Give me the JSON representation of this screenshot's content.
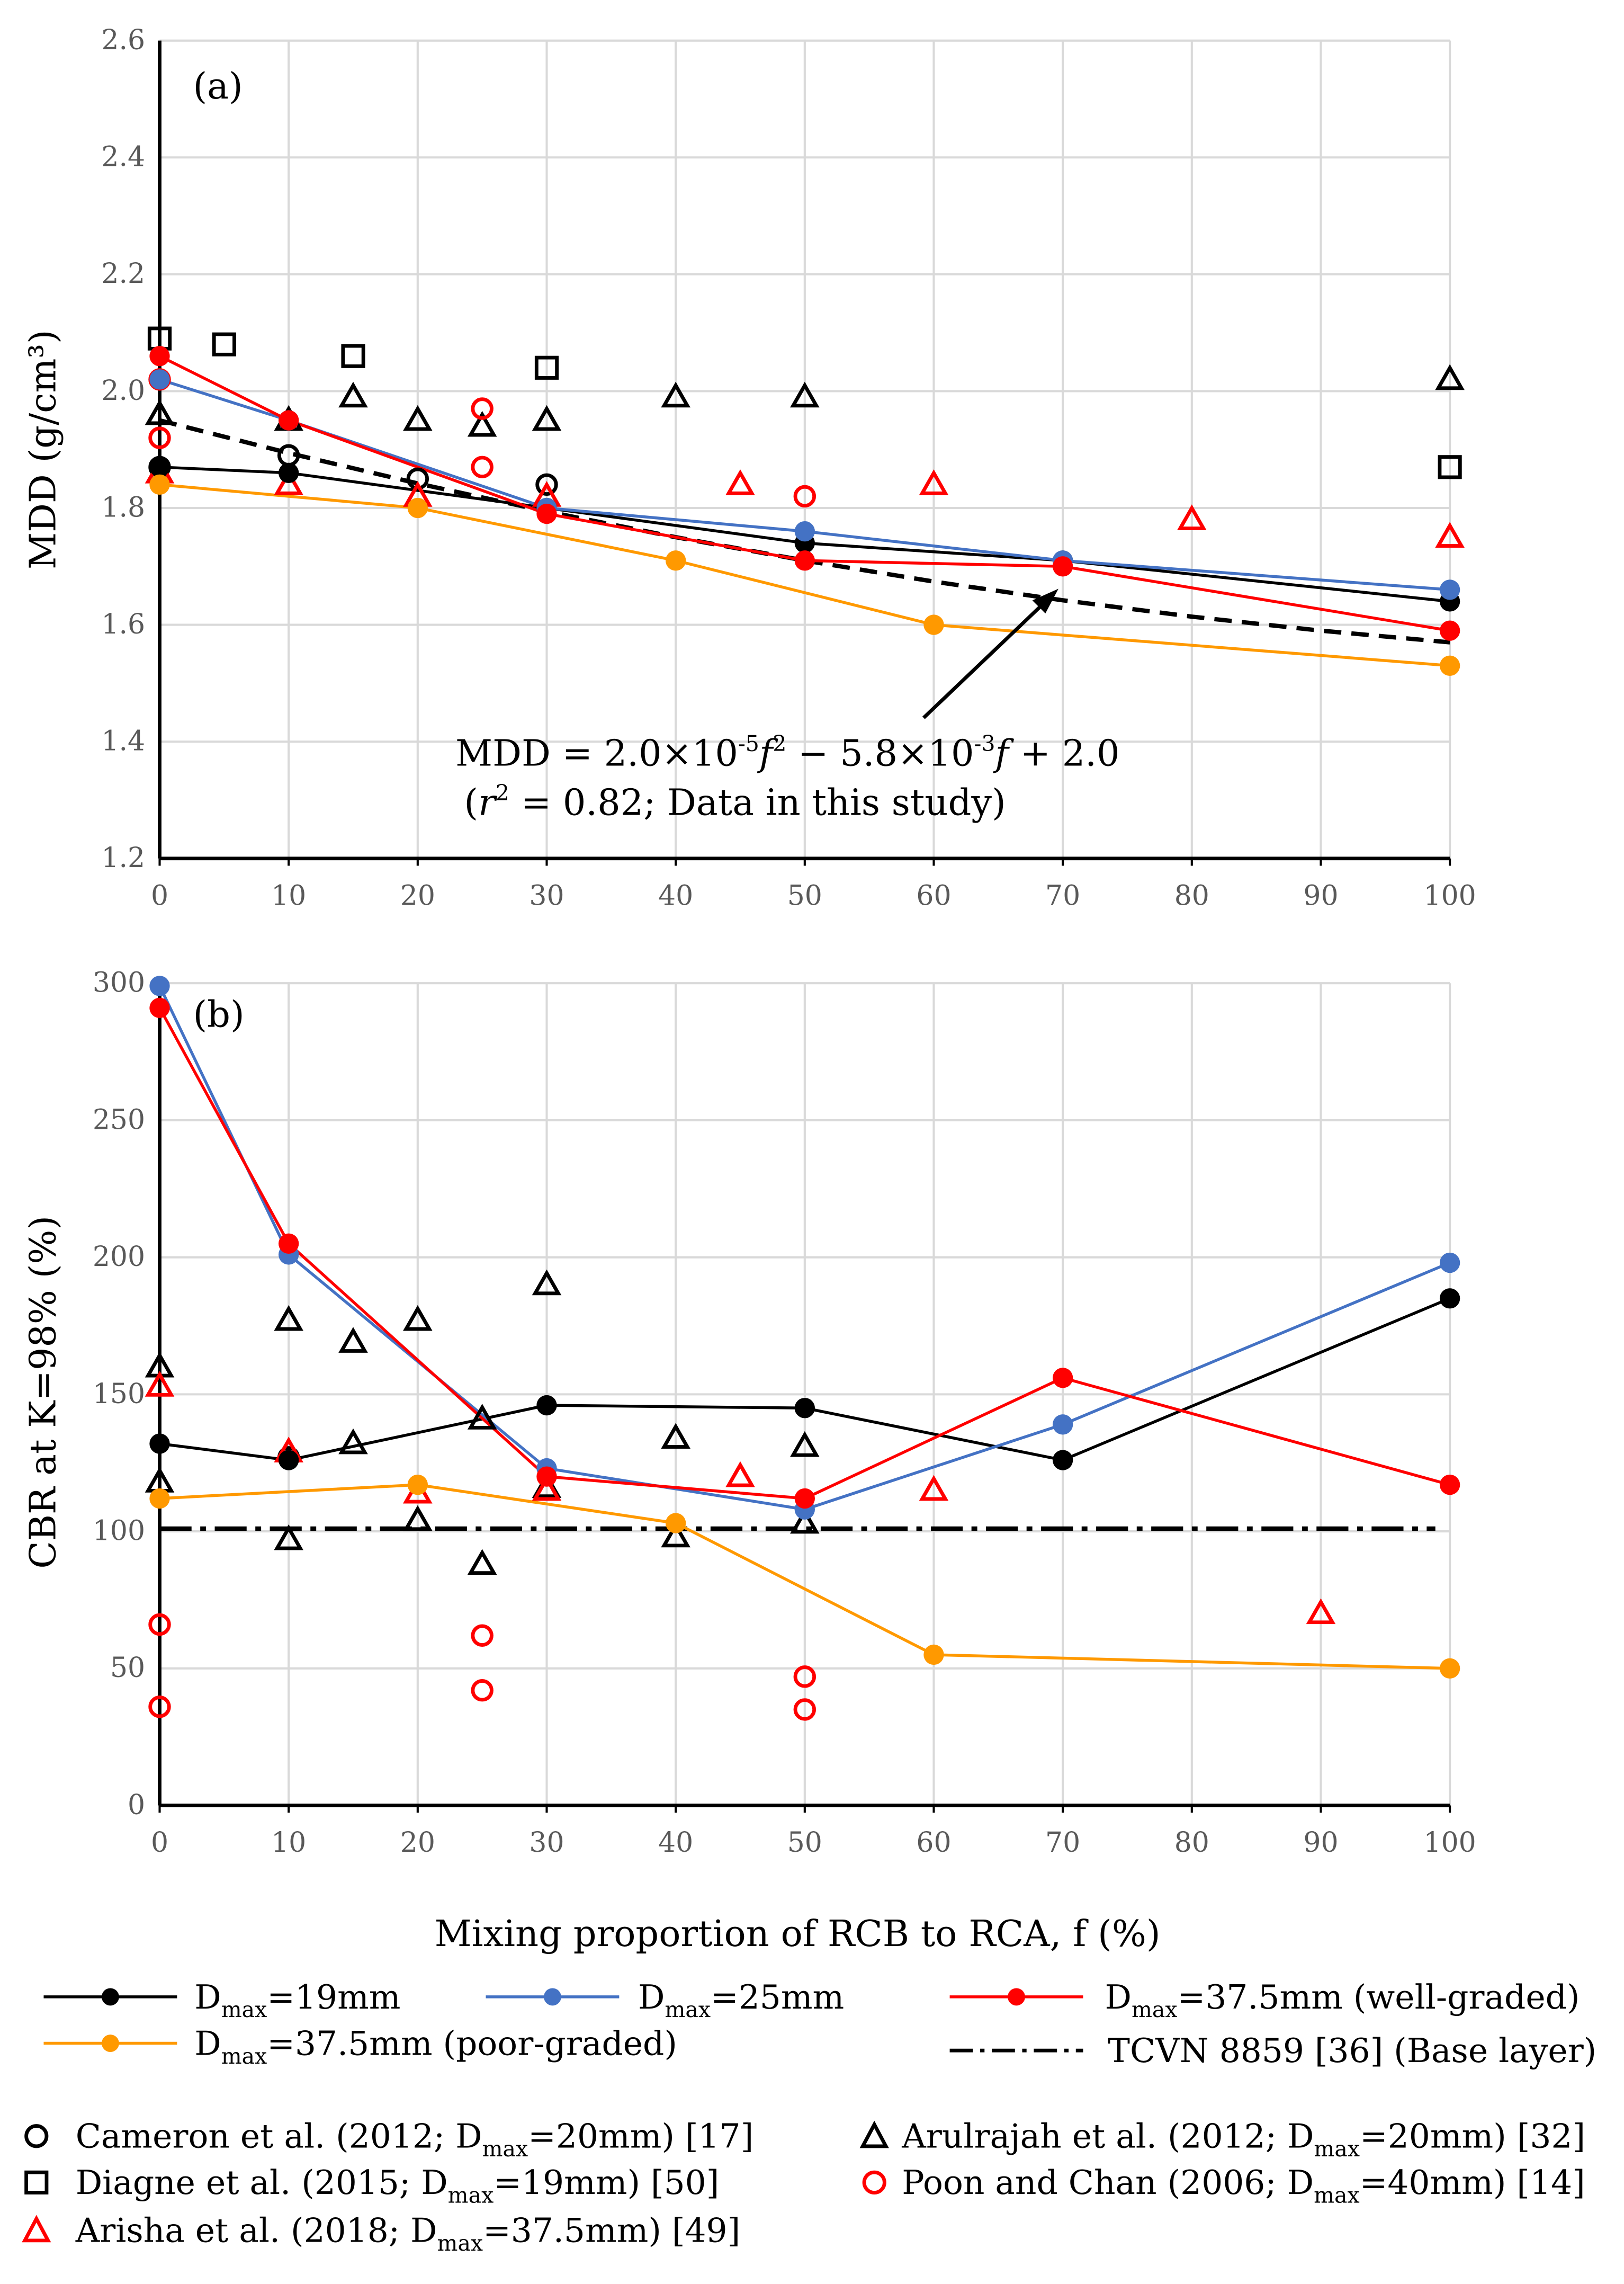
{
  "chart_data": [
    {
      "type": "line",
      "panel_label": "(a)",
      "xlabel": "",
      "ylabel": "MDD (g/cm³)",
      "xlim": [
        0,
        100
      ],
      "ylim": [
        1.2,
        2.6
      ],
      "xticks": [
        "0",
        "10",
        "20",
        "30",
        "40",
        "50",
        "60",
        "70",
        "80",
        "90",
        "100"
      ],
      "yticks": [
        "1.2",
        "1.4",
        "1.6",
        "1.8",
        "2.0",
        "2.2",
        "2.4",
        "2.6"
      ],
      "grid": true,
      "series": [
        {
          "name": "Dmax=19mm",
          "color": "#000000",
          "x": [
            0,
            10,
            30,
            50,
            70,
            100
          ],
          "y": [
            1.87,
            1.86,
            1.8,
            1.74,
            1.71,
            1.64
          ]
        },
        {
          "name": "Dmax=25mm",
          "color": "#4472c4",
          "x": [
            0,
            10,
            30,
            50,
            70,
            100
          ],
          "y": [
            2.02,
            1.95,
            1.8,
            1.76,
            1.71,
            1.66
          ]
        },
        {
          "name": "Dmax=37.5mm (well-graded)",
          "color": "#ff0000",
          "x": [
            0,
            10,
            30,
            50,
            70,
            100
          ],
          "y": [
            2.06,
            1.95,
            1.79,
            1.71,
            1.7,
            1.59
          ]
        },
        {
          "name": "Dmax=37.5mm (poor-graded)",
          "color": "#ff9900",
          "x": [
            0,
            20,
            40,
            60,
            100
          ],
          "y": [
            1.84,
            1.8,
            1.71,
            1.6,
            1.53
          ]
        }
      ],
      "fit": {
        "x": [
          0,
          10,
          20,
          30,
          40,
          50,
          60,
          70,
          80,
          90,
          100
        ],
        "y": [
          1.95,
          1.894,
          1.842,
          1.794,
          1.75,
          1.71,
          1.674,
          1.642,
          1.614,
          1.59,
          1.57
        ]
      },
      "scatter": [
        {
          "name": "Cameron",
          "x": [
            0,
            10,
            20,
            30
          ],
          "y": [
            1.87,
            1.89,
            1.85,
            1.84
          ]
        },
        {
          "name": "Arulrajah",
          "x": [
            0,
            10,
            15,
            20,
            25,
            30,
            40,
            50,
            100
          ],
          "y": [
            1.96,
            1.95,
            1.99,
            1.95,
            1.94,
            1.95,
            1.99,
            1.99,
            2.02
          ]
        },
        {
          "name": "Diagne",
          "x": [
            0,
            5,
            15,
            30,
            100
          ],
          "y": [
            2.09,
            2.08,
            2.06,
            2.04,
            1.87
          ]
        },
        {
          "name": "Poon",
          "x": [
            0,
            0,
            25,
            25,
            50
          ],
          "y": [
            2.02,
            1.92,
            1.97,
            1.87,
            1.82
          ]
        },
        {
          "name": "Arisha",
          "x": [
            0,
            10,
            20,
            30,
            45,
            60,
            80,
            100
          ],
          "y": [
            1.86,
            1.84,
            1.82,
            1.82,
            1.84,
            1.84,
            1.78,
            1.75
          ]
        }
      ],
      "annotation_line1_prefix": "MDD = 2.0×10",
      "annotation_line1_exp1": "-5",
      "annotation_line1_mid": " − 5.8×10",
      "annotation_line1_exp2": "-3",
      "annotation_line1_end": " + 2.0",
      "annotation_line2_prefix": "(",
      "annotation_line2_rest": " = 0.82; Data in this study)"
    },
    {
      "type": "line",
      "panel_label": "(b)",
      "xlabel": "Mixing proportion of RCB to RCA, f (%)",
      "ylabel": "CBR at K=98% (%)",
      "xlim": [
        0,
        100
      ],
      "ylim": [
        0,
        300
      ],
      "xticks": [
        "0",
        "10",
        "20",
        "30",
        "40",
        "50",
        "60",
        "70",
        "80",
        "90",
        "100"
      ],
      "yticks": [
        "0",
        "50",
        "100",
        "150",
        "200",
        "250",
        "300"
      ],
      "grid": true,
      "series": [
        {
          "name": "Dmax=19mm",
          "color": "#000000",
          "x": [
            0,
            10,
            30,
            50,
            70,
            100
          ],
          "y": [
            132,
            126,
            146,
            145,
            126,
            185
          ]
        },
        {
          "name": "Dmax=25mm",
          "color": "#4472c4",
          "x": [
            0,
            10,
            30,
            50,
            70,
            100
          ],
          "y": [
            299,
            201,
            123,
            108,
            139,
            198
          ]
        },
        {
          "name": "Dmax=37.5mm (well-graded)",
          "color": "#ff0000",
          "x": [
            0,
            10,
            30,
            50,
            70,
            100
          ],
          "y": [
            291,
            205,
            120,
            112,
            156,
            117
          ]
        },
        {
          "name": "Dmax=37.5mm (poor-graded)",
          "color": "#ff9900",
          "x": [
            0,
            20,
            40,
            60,
            100
          ],
          "y": [
            112,
            117,
            103,
            55,
            50
          ]
        }
      ],
      "tcvn": 101,
      "scatter": [
        {
          "name": "Cameron",
          "x": [
            10
          ],
          "y": [
            127
          ]
        },
        {
          "name": "Arulrajah",
          "x": [
            0,
            0,
            10,
            10,
            15,
            15,
            20,
            20,
            25,
            25,
            30,
            30,
            40,
            40,
            50,
            50
          ],
          "y": [
            160,
            118,
            177,
            97,
            169,
            132,
            177,
            104,
            141,
            88,
            190,
            116,
            134,
            98,
            131,
            103
          ]
        },
        {
          "name": "Poon",
          "x": [
            0,
            0,
            25,
            25,
            50,
            50
          ],
          "y": [
            66,
            36,
            62,
            42,
            47,
            35
          ]
        },
        {
          "name": "Arisha",
          "x": [
            0,
            10,
            20,
            30,
            45,
            60,
            90
          ],
          "y": [
            153,
            129,
            114,
            115,
            120,
            115,
            70
          ]
        }
      ]
    }
  ],
  "legend": {
    "dmax": "D",
    "sub": "max",
    "items": [
      {
        "suffix": "=19mm"
      },
      {
        "suffix": "=25mm"
      },
      {
        "suffix": "=37.5mm (well-graded)"
      },
      {
        "suffix": "=37.5mm (poor-graded)"
      },
      {
        "text": "TCVN 8859 [36] (Base layer)"
      }
    ],
    "refs": [
      {
        "pre": "Cameron et al. (2012; D",
        "post": "=20mm) [17]"
      },
      {
        "pre": "Arulrajah et al. (2012; D",
        "post": "=20mm) [32]"
      },
      {
        "pre": "Diagne et al. (2015; D",
        "post": "=19mm) [50]"
      },
      {
        "pre": "Poon and Chan (2006; D",
        "post": "=40mm) [14]"
      },
      {
        "pre": "Arisha et al. (2018; D",
        "post": "=37.5mm) [49]"
      }
    ]
  }
}
